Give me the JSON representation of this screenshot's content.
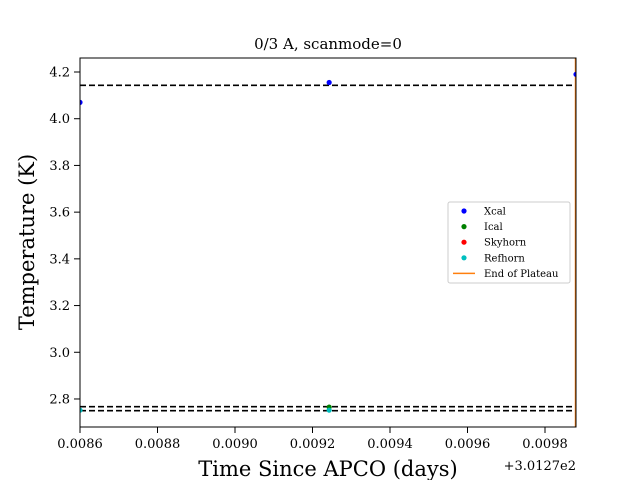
{
  "chart_data": {
    "type": "scatter",
    "title": "0/3 A, scanmode=0",
    "xlabel": "Time Since APCO (days)",
    "ylabel": "Temperature (K)",
    "x_offset_label": "+3.0127e2",
    "xlim": [
      0.0086,
      0.00988
    ],
    "ylim": [
      2.68,
      4.26
    ],
    "x_ticks": [
      0.0086,
      0.0088,
      0.009,
      0.0092,
      0.0094,
      0.0096,
      0.0098
    ],
    "x_tick_labels": [
      "0.0086",
      "0.0088",
      "0.0090",
      "0.0092",
      "0.0094",
      "0.0096",
      "0.0098"
    ],
    "y_ticks": [
      2.8,
      3.0,
      3.2,
      3.4,
      3.6,
      3.8,
      4.0,
      4.2
    ],
    "y_tick_labels": [
      "2.8",
      "3.0",
      "3.2",
      "3.4",
      "3.6",
      "3.8",
      "4.0",
      "4.2"
    ],
    "grid": false,
    "legend_position": "center-right",
    "series": [
      {
        "name": "Xcal",
        "color": "#0000ff",
        "x": [
          0.0086,
          0.009243,
          0.00988
        ],
        "y": [
          4.07,
          4.155,
          4.19
        ]
      },
      {
        "name": "Ical",
        "color": "#008000",
        "x": [
          0.009243
        ],
        "y": [
          2.765
        ]
      },
      {
        "name": "Skyhorn",
        "color": "#ff0000",
        "x": [],
        "y": []
      },
      {
        "name": "Refhorn",
        "color": "#00bfbf",
        "x": [
          0.0086,
          0.009243
        ],
        "y": [
          2.752,
          2.752
        ]
      }
    ],
    "reference_lines": [
      {
        "y": 4.143,
        "style": "dashed",
        "color": "#000000"
      },
      {
        "y": 2.767,
        "style": "dashed",
        "color": "#000000"
      },
      {
        "y": 2.75,
        "style": "dashed",
        "color": "#000000"
      }
    ],
    "vertical_lines": [
      {
        "name": "End of Plateau",
        "x": 0.00988,
        "color": "#ff7f0e"
      }
    ]
  }
}
